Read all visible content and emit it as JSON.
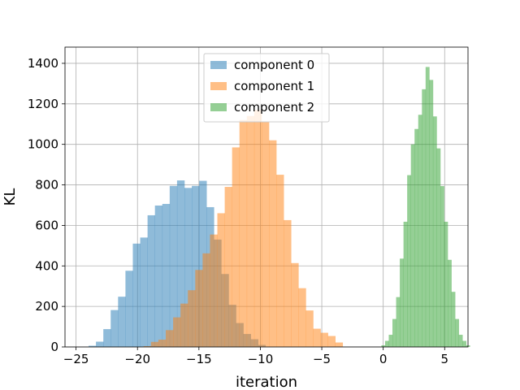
{
  "chart_data": {
    "type": "histogram",
    "xlabel": "iteration",
    "ylabel": "KL",
    "xlim": [
      -25.9,
      6.9
    ],
    "ylim": [
      0,
      1480
    ],
    "xticks": [
      -25,
      -20,
      -15,
      -10,
      -5,
      0,
      5
    ],
    "yticks": [
      0,
      200,
      400,
      600,
      800,
      1000,
      1200,
      1400
    ],
    "grid": true,
    "legend_position": "top-center",
    "series": [
      {
        "name": "component 0",
        "color": "#1f77b4",
        "opacity": 0.5,
        "bin_start": -23.98,
        "bin_width": 0.6,
        "counts": [
          6,
          26,
          88,
          182,
          248,
          376,
          510,
          540,
          650,
          698,
          706,
          795,
          822,
          785,
          795,
          820,
          690,
          530,
          360,
          208,
          118,
          64,
          38,
          10
        ]
      },
      {
        "name": "component 1",
        "color": "#ff7f0e",
        "opacity": 0.5,
        "bin_start": -19.5,
        "bin_width": 0.6,
        "counts": [
          4,
          25,
          36,
          83,
          146,
          214,
          280,
          380,
          462,
          555,
          660,
          790,
          985,
          1120,
          1140,
          1170,
          1110,
          1020,
          850,
          626,
          414,
          290,
          180,
          90,
          70,
          54,
          22
        ]
      },
      {
        "name": "component 2",
        "color": "#2ca02c",
        "opacity": 0.5,
        "bin_start": -0.15,
        "bin_width": 0.3,
        "counts": [
          8,
          30,
          60,
          138,
          246,
          436,
          618,
          848,
          1000,
          1076,
          1146,
          1272,
          1382,
          1318,
          1138,
          980,
          794,
          618,
          430,
          272,
          138,
          60,
          30,
          8
        ]
      }
    ]
  }
}
